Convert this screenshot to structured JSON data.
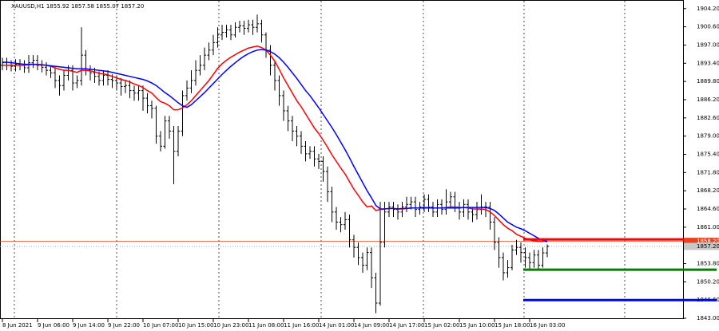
{
  "chart_data": {
    "type": "ohlc",
    "title": "XAUUSD,H1  1855.92 1857.58 1855.07 1857.20",
    "categories": [
      "8 Jun 2021",
      null,
      null,
      null,
      null,
      null,
      null,
      null,
      "9 Jun 06:00",
      null,
      null,
      null,
      null,
      null,
      null,
      null,
      "9 Jun 14:00",
      null,
      null,
      null,
      null,
      null,
      null,
      null,
      "9 Jun 22:00",
      null,
      null,
      null,
      null,
      null,
      null,
      null,
      "10 Jun 07:00",
      null,
      null,
      null,
      null,
      null,
      null,
      null,
      "10 Jun 15:00",
      null,
      null,
      null,
      null,
      null,
      null,
      null,
      "10 Jun 23:00",
      null,
      null,
      null,
      null,
      null,
      null,
      null,
      "11 Jun 08:00",
      null,
      null,
      null,
      null,
      null,
      null,
      null,
      "11 Jun 16:00",
      null,
      null,
      null,
      null,
      null,
      null,
      null,
      "14 Jun 01:00",
      null,
      null,
      null,
      null,
      null,
      null,
      null,
      "14 Jun 09:00",
      null,
      null,
      null,
      null,
      null,
      null,
      null,
      "14 Jun 17:00",
      null,
      null,
      null,
      null,
      null,
      null,
      null,
      "15 Jun 02:00",
      null,
      null,
      null,
      null,
      null,
      null,
      null,
      "15 Jun 10:00",
      null,
      null,
      null,
      null,
      null,
      null,
      null,
      "15 Jun 18:00",
      null,
      null,
      null,
      null,
      null,
      null,
      null,
      "16 Jun 03:00",
      null,
      null,
      null,
      null
    ],
    "open": [
      1893,
      1893.5,
      1893,
      1892.8,
      1893.2,
      1893,
      1892.5,
      1893.5,
      1894,
      1893,
      1892.6,
      1892,
      1891.5,
      1890,
      1889,
      1891,
      1892,
      1889.5,
      1890,
      1895,
      1892,
      1891.5,
      1890.8,
      1890,
      1891,
      1890.2,
      1890,
      1889.5,
      1888.8,
      1889,
      1888,
      1887.5,
      1888,
      1886.5,
      1885,
      1884.5,
      1879,
      1877,
      1882,
      1880,
      1876,
      1880,
      1887,
      1888.5,
      1890,
      1892,
      1893,
      1895,
      1896,
      1897.5,
      1899,
      1899.5,
      1900,
      1899,
      1900.5,
      1900.8,
      1900.3,
      1901,
      1900.5,
      1901.2,
      1899,
      1896,
      1893,
      1890,
      1887,
      1884,
      1882,
      1880,
      1879,
      1877,
      1875.5,
      1876,
      1874.5,
      1874,
      1872,
      1868,
      1864,
      1862,
      1861.5,
      1862.5,
      1858.5,
      1857,
      1855,
      1853.5,
      1856,
      1851,
      1846,
      1858,
      1864,
      1865,
      1864.5,
      1864,
      1865,
      1865.5,
      1866,
      1864.5,
      1865,
      1866.5,
      1865,
      1864,
      1865.5,
      1864.5,
      1866,
      1867,
      1865,
      1864,
      1865.5,
      1864,
      1863.5,
      1864.5,
      1865,
      1865,
      1862,
      1858,
      1855,
      1852,
      1853,
      1856.5,
      1857,
      1856,
      1855,
      1854,
      1855.5,
      1853.5,
      1855.92
    ],
    "high": [
      1894.5,
      1894.5,
      1894,
      1894.2,
      1894.2,
      1894,
      1895,
      1895,
      1895,
      1894,
      1893.6,
      1893,
      1892.5,
      1891,
      1892,
      1893,
      1893,
      1891,
      1900.5,
      1896,
      1893,
      1892.5,
      1891.8,
      1892,
      1892,
      1891.2,
      1891,
      1890.5,
      1890,
      1890,
      1889,
      1889,
      1889,
      1887.5,
      1886,
      1885,
      1880,
      1883,
      1883,
      1881,
      1881,
      1888,
      1890,
      1892,
      1894,
      1895,
      1896.5,
      1897.5,
      1899,
      1900.5,
      1901,
      1901,
      1901,
      1901.5,
      1901.8,
      1901.8,
      1902,
      1902,
      1903,
      1902,
      1899.5,
      1897,
      1894,
      1891,
      1888,
      1885,
      1883,
      1881,
      1880,
      1878,
      1877,
      1877,
      1875.5,
      1875,
      1873,
      1869,
      1865,
      1863,
      1864,
      1863.5,
      1859.5,
      1858,
      1856,
      1857,
      1857,
      1852,
      1866,
      1866,
      1866,
      1866,
      1865.5,
      1866,
      1867,
      1867,
      1867,
      1866,
      1867.5,
      1867.5,
      1866,
      1866.5,
      1866.5,
      1868.5,
      1868,
      1868,
      1866,
      1866.5,
      1866.5,
      1865,
      1866,
      1867.5,
      1866,
      1866,
      1863,
      1859,
      1856,
      1854.5,
      1857.5,
      1858.5,
      1858,
      1857,
      1856,
      1856.5,
      1856.5,
      1857,
      1857.58
    ],
    "low": [
      1892,
      1892,
      1891.8,
      1891.8,
      1892,
      1891.5,
      1891.5,
      1892.5,
      1892,
      1891.6,
      1891,
      1890.5,
      1888.5,
      1887,
      1888,
      1890,
      1888,
      1888.5,
      1889,
      1891,
      1890,
      1889.5,
      1889,
      1889,
      1889,
      1888.5,
      1888,
      1887,
      1887.5,
      1886.5,
      1886,
      1886,
      1884,
      1883.5,
      1882.5,
      1877.5,
      1876,
      1876.5,
      1878.5,
      1869.5,
      1875,
      1879,
      1886,
      1887.5,
      1889,
      1891,
      1892,
      1894,
      1895,
      1896.5,
      1898,
      1898.5,
      1898,
      1898.5,
      1899.5,
      1899,
      1899.5,
      1899,
      1899.5,
      1897.5,
      1894.5,
      1891,
      1888,
      1885,
      1882,
      1880,
      1878,
      1877,
      1875.5,
      1874,
      1874.5,
      1873,
      1872.5,
      1870,
      1866,
      1862,
      1860.5,
      1860,
      1860.5,
      1857,
      1855,
      1853.5,
      1852,
      1852.5,
      1849,
      1844,
      1845.5,
      1857,
      1863,
      1863,
      1862.5,
      1863,
      1864,
      1864.5,
      1863,
      1863.5,
      1864,
      1864,
      1863,
      1863,
      1863.5,
      1863.5,
      1865,
      1864,
      1862.5,
      1863,
      1862.5,
      1862,
      1862.5,
      1863.5,
      1863,
      1860.5,
      1856.5,
      1853,
      1850.5,
      1851,
      1852.5,
      1855.5,
      1854,
      1853,
      1852.5,
      1853,
      1852.5,
      1853,
      1855.07
    ],
    "close": [
      1893.5,
      1893,
      1892.8,
      1893.2,
      1893,
      1892.5,
      1893.5,
      1894,
      1893,
      1892.6,
      1892,
      1891.5,
      1890,
      1889,
      1891,
      1892,
      1889.5,
      1890,
      1895,
      1892,
      1891.5,
      1890.8,
      1890,
      1891,
      1890.2,
      1890,
      1889.5,
      1888.8,
      1889,
      1888,
      1887.5,
      1888,
      1886.5,
      1885,
      1884.5,
      1879,
      1877,
      1882,
      1880,
      1876,
      1880,
      1887,
      1888.5,
      1890,
      1892,
      1893,
      1895,
      1896,
      1897.5,
      1899,
      1899.5,
      1900,
      1899,
      1900.5,
      1900.8,
      1900.3,
      1901,
      1900.5,
      1901.2,
      1899,
      1896,
      1893,
      1890,
      1887,
      1884,
      1882,
      1880,
      1879,
      1877,
      1875.5,
      1876,
      1874.5,
      1874,
      1872,
      1868,
      1864,
      1862,
      1861.5,
      1862.5,
      1858.5,
      1857,
      1855,
      1853.5,
      1856,
      1851,
      1846,
      1858,
      1864,
      1865,
      1864.5,
      1864,
      1865,
      1865.5,
      1866,
      1864.5,
      1865,
      1866.5,
      1865,
      1864,
      1865.5,
      1864.5,
      1866,
      1867,
      1865,
      1864,
      1865.5,
      1864,
      1863.5,
      1864.5,
      1865,
      1865,
      1862,
      1858,
      1855,
      1852,
      1853,
      1856.5,
      1857,
      1856,
      1855,
      1854,
      1855.5,
      1853.5,
      1855.92,
      1857.2
    ],
    "series": [
      {
        "color": "#ff0000",
        "values": [
          1893,
          1893,
          1893,
          1893,
          1893,
          1893,
          1893.1,
          1893.2,
          1893.2,
          1893.1,
          1893,
          1892.8,
          1892.5,
          1892.2,
          1892,
          1892,
          1891.8,
          1891.6,
          1892,
          1892,
          1891.9,
          1891.7,
          1891.4,
          1891.3,
          1891.1,
          1890.8,
          1890.5,
          1890.2,
          1890,
          1889.7,
          1889.3,
          1889,
          1888.6,
          1888,
          1887.5,
          1886.6,
          1885.8,
          1885.5,
          1885,
          1884.2,
          1884.2,
          1884.6,
          1885.2,
          1886,
          1887,
          1888,
          1889,
          1890,
          1891.2,
          1892.4,
          1893.3,
          1894,
          1894.6,
          1895.1,
          1895.6,
          1896,
          1896.4,
          1896.6,
          1896.8,
          1896.5,
          1896,
          1895,
          1893.8,
          1892.2,
          1890.5,
          1889,
          1887.5,
          1886,
          1884.8,
          1883.4,
          1882,
          1880.6,
          1879.5,
          1878.2,
          1876.8,
          1875.3,
          1874,
          1872.7,
          1871.5,
          1870,
          1868.5,
          1867.3,
          1866,
          1865,
          1865.2,
          1864.3,
          1864.5,
          1864.6,
          1864.7,
          1864.7,
          1864.6,
          1864.6,
          1864.7,
          1864.8,
          1864.8,
          1864.8,
          1864.9,
          1864.9,
          1864.8,
          1864.8,
          1864.8,
          1864.9,
          1865,
          1865,
          1864.9,
          1864.9,
          1864.8,
          1864.6,
          1864.6,
          1864.6,
          1864.5,
          1864,
          1863.3,
          1862.4,
          1861.5,
          1860.8,
          1860.3,
          1859.6,
          1859.2,
          1858.8,
          1858.5,
          1858.3,
          1858.2,
          1858.2,
          1858.3
        ]
      },
      {
        "color": "#0000ff",
        "values": [
          1893.6,
          1893.6,
          1893.5,
          1893.4,
          1893.3,
          1893.2,
          1893.2,
          1893.2,
          1893.1,
          1893.1,
          1893,
          1892.9,
          1892.8,
          1892.7,
          1892.6,
          1892.5,
          1892.4,
          1892.3,
          1892.3,
          1892.3,
          1892.2,
          1892.1,
          1892,
          1891.9,
          1891.8,
          1891.6,
          1891.4,
          1891.2,
          1891,
          1890.8,
          1890.6,
          1890.4,
          1890.2,
          1889.9,
          1889.5,
          1889,
          1888.3,
          1887.6,
          1887,
          1886.3,
          1885.6,
          1885,
          1884.7,
          1885.2,
          1886,
          1886.8,
          1887.6,
          1888.5,
          1889.4,
          1890.3,
          1891.2,
          1892,
          1892.8,
          1893.5,
          1894.2,
          1894.8,
          1895.3,
          1895.7,
          1896,
          1896.1,
          1896,
          1895.7,
          1895.2,
          1894.5,
          1893.6,
          1892.6,
          1891.5,
          1890.4,
          1889.2,
          1888,
          1887,
          1885.8,
          1884.6,
          1883.3,
          1882,
          1880.7,
          1879.3,
          1877.8,
          1876.3,
          1874.7,
          1873,
          1871.4,
          1869.8,
          1868.2,
          1866.8,
          1865.3,
          1864.6,
          1864.6,
          1864.7,
          1864.7,
          1864.6,
          1864.7,
          1864.7,
          1864.8,
          1864.8,
          1864.8,
          1864.8,
          1864.8,
          1864.8,
          1864.8,
          1864.8,
          1864.8,
          1864.8,
          1864.8,
          1864.8,
          1864.9,
          1864.9,
          1864.9,
          1864.9,
          1864.9,
          1864.9,
          1864.7,
          1864.3,
          1863.6,
          1862.8,
          1862,
          1861.5,
          1861,
          1860.7,
          1860.3,
          1859.8,
          1859.3,
          1858.8,
          1858.4,
          1858.1
        ]
      }
    ],
    "levels": [
      {
        "value": 1858.6,
        "color": "#ff0000"
      },
      {
        "value": 1852.6,
        "color": "#008000"
      },
      {
        "value": 1846.6,
        "color": "#0000ff"
      }
    ],
    "price_line": {
      "value": 1858.2,
      "label": "1858.20",
      "color": "#e8431c"
    },
    "last_price": {
      "value": 1857.2,
      "label": "1857.20"
    },
    "ylim": [
      1842.85,
      1905.9
    ],
    "yticks": [
      {
        "value": 1904.2,
        "label": "1904.20"
      },
      {
        "value": 1900.6,
        "label": "1900.60"
      },
      {
        "value": 1897,
        "label": "1897.00"
      },
      {
        "value": 1893.4,
        "label": "1893.40"
      },
      {
        "value": 1889.8,
        "label": "1889.80"
      },
      {
        "value": 1886.2,
        "label": "1886.20"
      },
      {
        "value": 1882.6,
        "label": "1882.60"
      },
      {
        "value": 1879,
        "label": "1879.00"
      },
      {
        "value": 1875.4,
        "label": "1875.40"
      },
      {
        "value": 1871.8,
        "label": "1871.80"
      },
      {
        "value": 1868.2,
        "label": "1868.20"
      },
      {
        "value": 1864.6,
        "label": "1864.60"
      },
      {
        "value": 1861,
        "label": "1861.00"
      },
      {
        "value": 1853.8,
        "label": "1853.80"
      },
      {
        "value": 1850.2,
        "label": "1850.20"
      },
      {
        "value": 1846.6,
        "label": "1846.60"
      },
      {
        "value": 1843,
        "label": "1843.00"
      }
    ],
    "grid": true
  }
}
